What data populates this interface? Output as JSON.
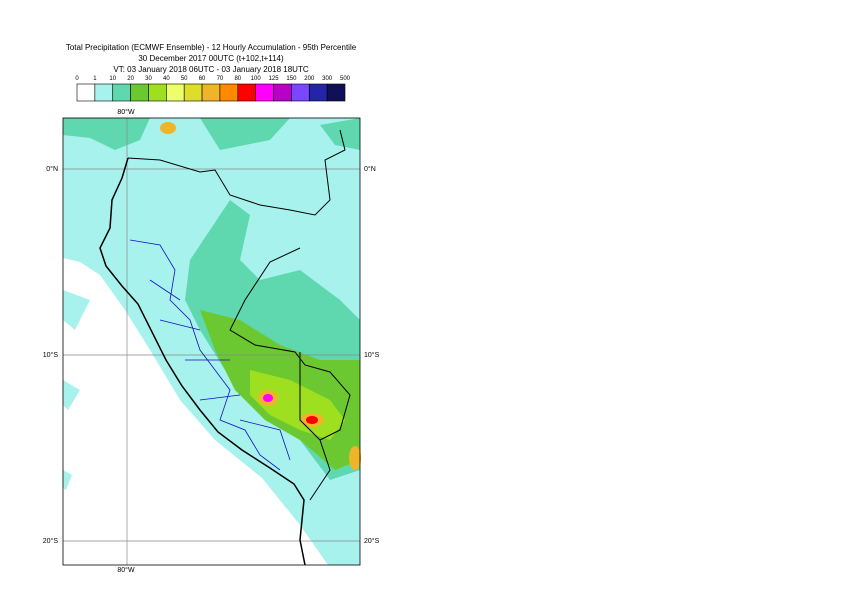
{
  "header": {
    "title": "Total Precipitation (ECMWF Ensemble) - 12 Hourly Accumulation - 95th Percentile",
    "base_time": "30 December 2017 00UTC (t+102,t+114)",
    "valid_time": "VT: 03 January 2018 06UTC - 03 January 2018 18UTC"
  },
  "legend": {
    "levels": [
      0,
      1,
      10,
      20,
      30,
      40,
      50,
      60,
      70,
      80,
      100,
      125,
      150,
      200,
      300,
      500
    ],
    "colors": [
      "#ffffff",
      "#a8f2ee",
      "#5fd8b0",
      "#6cc830",
      "#9ee020",
      "#eefd6a",
      "#dede2a",
      "#f0b428",
      "#ff8a00",
      "#ff0000",
      "#ff00ff",
      "#b800c8",
      "#7a46ff",
      "#2424a8",
      "#101058"
    ]
  },
  "map": {
    "lon_label": "80°W",
    "lat_labels": [
      "0°N",
      "10°S",
      "20°S"
    ]
  }
}
